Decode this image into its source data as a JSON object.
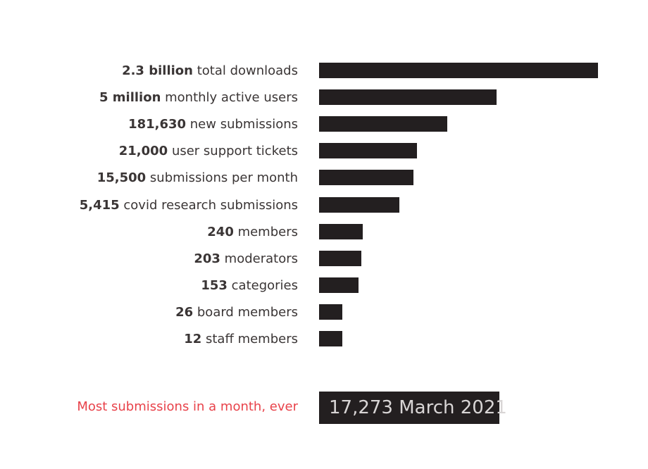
{
  "chart_data": {
    "type": "bar",
    "orientation": "horizontal",
    "categories": [
      "total downloads",
      "monthly active users",
      "new submissions",
      "user support tickets",
      "submissions per month",
      "covid research submissions",
      "members",
      "moderators",
      "categories",
      "board members",
      "staff members"
    ],
    "items": [
      {
        "value_label": "2.3 billion",
        "desc": "total downloads"
      },
      {
        "value_label": "5 million",
        "desc": "monthly active users"
      },
      {
        "value_label": "181,630",
        "desc": "new submissions"
      },
      {
        "value_label": "21,000",
        "desc": "user support tickets"
      },
      {
        "value_label": "15,500",
        "desc": "submissions per month"
      },
      {
        "value_label": "5,415",
        "desc": "covid research submissions"
      },
      {
        "value_label": "240",
        "desc": "members"
      },
      {
        "value_label": "203",
        "desc": "moderators"
      },
      {
        "value_label": "153",
        "desc": "categories"
      },
      {
        "value_label": "26",
        "desc": "board members"
      },
      {
        "value_label": "12",
        "desc": "staff members"
      }
    ],
    "values": [
      2300000000,
      5000000,
      181630,
      21000,
      15500,
      5415,
      240,
      203,
      153,
      26,
      12
    ],
    "scale": "log",
    "grid": false,
    "title": "",
    "xlabel": "",
    "ylabel": ""
  },
  "footer": {
    "label": "Most submissions in a month, ever",
    "value": "17,273 March 2021"
  },
  "colors": {
    "bar": "#231f20",
    "label_text": "#3a3535",
    "accent": "#e8424a",
    "box_text": "#d8d5d5"
  }
}
